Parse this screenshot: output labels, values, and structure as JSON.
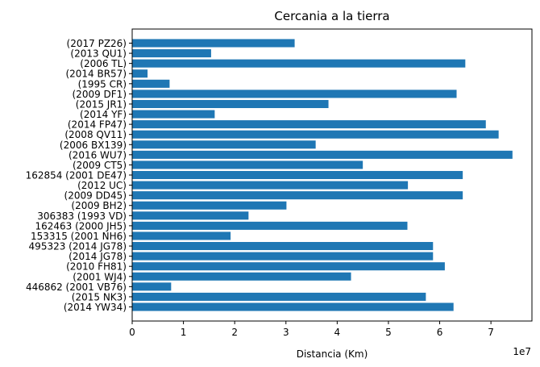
{
  "chart_data": {
    "type": "bar",
    "orientation": "horizontal",
    "title": "Cercania a la tierra",
    "xlabel": "Distancia (Km)",
    "ylabel": "",
    "x_offset_label": "1e7",
    "x_ticks": [
      "0",
      "1",
      "2",
      "3",
      "4",
      "5",
      "6",
      "7"
    ],
    "xlim": [
      0,
      7.8
    ],
    "grid": false,
    "bar_color": "#1f77b4",
    "categories": [
      "(2014 YW34)",
      "(2015 NK3)",
      "446862 (2001 VB76)",
      "(2001 WJ4)",
      "(2010 FH81)",
      "(2014 JG78)",
      "495323 (2014 JG78)",
      "153315 (2001 NH6)",
      "162463 (2000 JH5)",
      "306383 (1993 VD)",
      "(2009 BH2)",
      "(2009 DD45)",
      "(2012 UC)",
      "162854 (2001 DE47)",
      "(2009 CT5)",
      "(2016 WU7)",
      "(2006 BX139)",
      "(2008 QV11)",
      "(2014 FP47)",
      "(2014 YF)",
      "(2015 JR1)",
      "(2009 DF1)",
      "(1995 CR)",
      "(2014 BR57)",
      "(2006 TL)",
      "(2013 QU1)",
      "(2017 PZ26)"
    ],
    "values": [
      62700000,
      57300000,
      7600000,
      42700000,
      61000000,
      58700000,
      58700000,
      19200000,
      53700000,
      22700000,
      30100000,
      64500000,
      53800000,
      64500000,
      45000000,
      74200000,
      35800000,
      71500000,
      69000000,
      16100000,
      38300000,
      63300000,
      7300000,
      3000000,
      65000000,
      15400000,
      31700000
    ]
  }
}
